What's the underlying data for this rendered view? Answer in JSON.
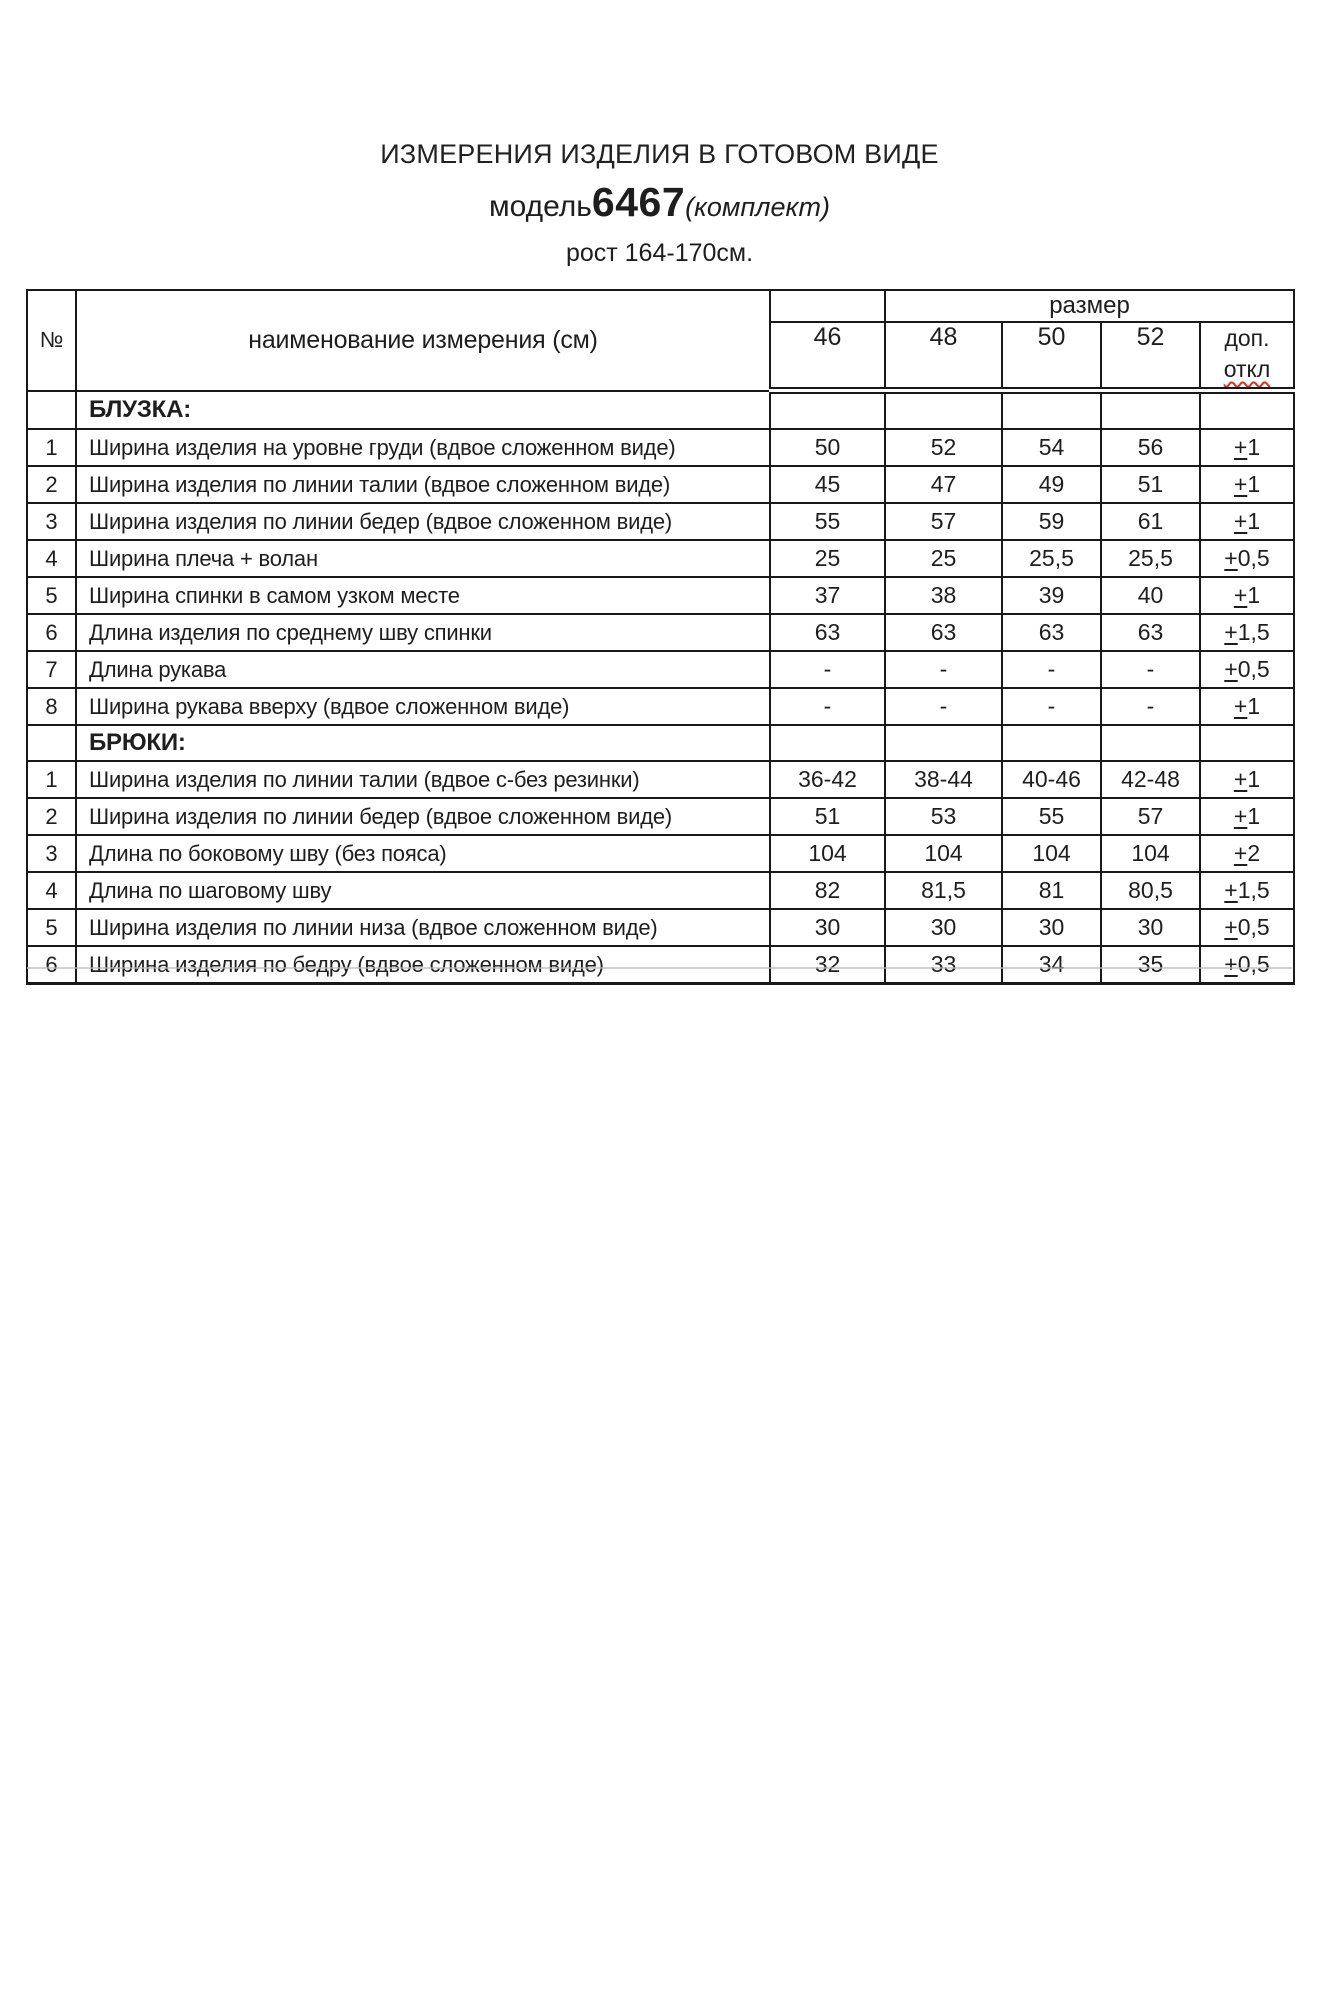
{
  "title": {
    "line1": "ИЗМЕРЕНИЯ ИЗДЕЛИЯ В ГОТОВОМ ВИДЕ",
    "model_prefix": "модель",
    "model_number": "6467",
    "model_suffix": "(комплект)",
    "height_line": "рост 164-170см."
  },
  "table": {
    "header": {
      "num": "№",
      "name": "наименование измерения (см)",
      "size_group": "размер",
      "sizes": [
        "46",
        "48",
        "50",
        "52"
      ],
      "tolerance_line1": "доп.",
      "tolerance_line2": "откл"
    },
    "sections": [
      {
        "label": "БЛУЗКА:",
        "rows": [
          {
            "num": "1",
            "name": "Ширина изделия на уровне груди (вдвое сложенном виде)",
            "values": [
              "50",
              "52",
              "54",
              "56"
            ],
            "tolerance": "+1"
          },
          {
            "num": "2",
            "name": "Ширина изделия по линии талии (вдвое сложенном виде)",
            "values": [
              "45",
              "47",
              "49",
              "51"
            ],
            "tolerance": "+1"
          },
          {
            "num": "3",
            "name": "Ширина изделия по линии бедер (вдвое сложенном виде)",
            "values": [
              "55",
              "57",
              "59",
              "61"
            ],
            "tolerance": "+1"
          },
          {
            "num": "4",
            "name": "Ширина плеча + волан",
            "values": [
              "25",
              "25",
              "25,5",
              "25,5"
            ],
            "tolerance": "+0,5"
          },
          {
            "num": "5",
            "name": "Ширина спинки в самом узком месте",
            "values": [
              "37",
              "38",
              "39",
              "40"
            ],
            "tolerance": "+1"
          },
          {
            "num": "6",
            "name": "Длина изделия по среднему шву спинки",
            "values": [
              "63",
              "63",
              "63",
              "63"
            ],
            "tolerance": "+1,5"
          },
          {
            "num": "7",
            "name": "Длина рукава",
            "values": [
              "-",
              "-",
              "-",
              "-"
            ],
            "tolerance": "+0,5"
          },
          {
            "num": "8",
            "name": "Ширина рукава вверху (вдвое сложенном виде)",
            "values": [
              "-",
              "-",
              "-",
              "-"
            ],
            "tolerance": "+1"
          }
        ]
      },
      {
        "label": "БРЮКИ:",
        "rows": [
          {
            "num": "1",
            "name": "Ширина изделия по линии талии (вдвое с-без резинки)",
            "values": [
              "36-42",
              "38-44",
              "40-46",
              "42-48"
            ],
            "tolerance": "+1"
          },
          {
            "num": "2",
            "name": "Ширина изделия по линии бедер (вдвое сложенном виде)",
            "values": [
              "51",
              "53",
              "55",
              "57"
            ],
            "tolerance": "+1"
          },
          {
            "num": "3",
            "name": "Длина по боковому шву (без пояса)",
            "values": [
              "104",
              "104",
              "104",
              "104"
            ],
            "tolerance": "+2"
          },
          {
            "num": "4",
            "name": "Длина по шаговому шву",
            "values": [
              "82",
              "81,5",
              "81",
              "80,5"
            ],
            "tolerance": "+1,5"
          },
          {
            "num": "5",
            "name": "Ширина изделия по линии низа (вдвое сложенном виде)",
            "values": [
              "30",
              "30",
              "30",
              "30"
            ],
            "tolerance": "+0,5"
          },
          {
            "num": "6",
            "name": "Ширина изделия по бедру (вдвое сложенном виде)",
            "values": [
              "32",
              "33",
              "34",
              "35"
            ],
            "tolerance": "+0,5"
          }
        ]
      }
    ]
  },
  "colors": {
    "text": "#1e1e1e",
    "border": "#191919",
    "spellcheck_underline": "#d23425",
    "background": "#ffffff"
  }
}
